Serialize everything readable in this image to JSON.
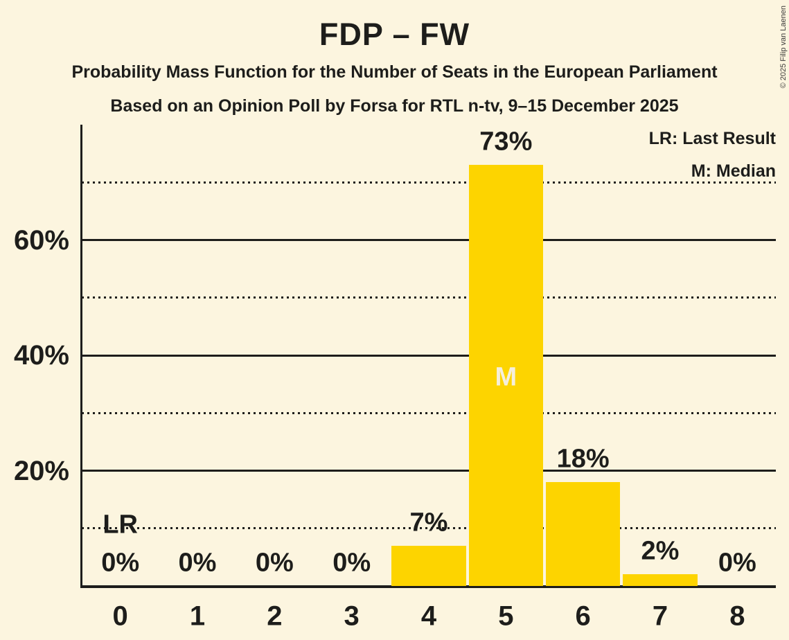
{
  "title": "FDP – FW",
  "subtitle1": "Probability Mass Function for the Number of Seats in the European Parliament",
  "subtitle2": "Based on an Opinion Poll by Forsa for RTL n-tv, 9–15 December 2025",
  "copyright": "© 2025 Filip van Laenen",
  "legend": {
    "lr": "LR: Last Result",
    "m": "M: Median"
  },
  "colors": {
    "background": "#FCF5DF",
    "bar": "#FDD400",
    "text": "#1D1D1B",
    "line": "#1D1D1B",
    "median_text": "#F5EFDC"
  },
  "chart_data": {
    "type": "bar",
    "title": "FDP – FW",
    "categories": [
      "0",
      "1",
      "2",
      "3",
      "4",
      "5",
      "6",
      "7",
      "8"
    ],
    "values": [
      0,
      0,
      0,
      0,
      7,
      73,
      18,
      2,
      0
    ],
    "value_labels": [
      "0%",
      "0%",
      "0%",
      "0%",
      "7%",
      "73%",
      "18%",
      "2%",
      "0%"
    ],
    "xlabel": "",
    "ylabel": "",
    "ylim": [
      0,
      80
    ],
    "grid": "horizontal",
    "y_solid_ticks": [
      {
        "value": 20,
        "label": "20%"
      },
      {
        "value": 40,
        "label": "40%"
      },
      {
        "value": 60,
        "label": "60%"
      }
    ],
    "y_dotted_ticks": [
      10,
      30,
      50,
      70
    ],
    "legend_position": "top-right",
    "median_index": 5,
    "median_label": "M",
    "last_result_index": 0,
    "last_result_label": "LR"
  }
}
